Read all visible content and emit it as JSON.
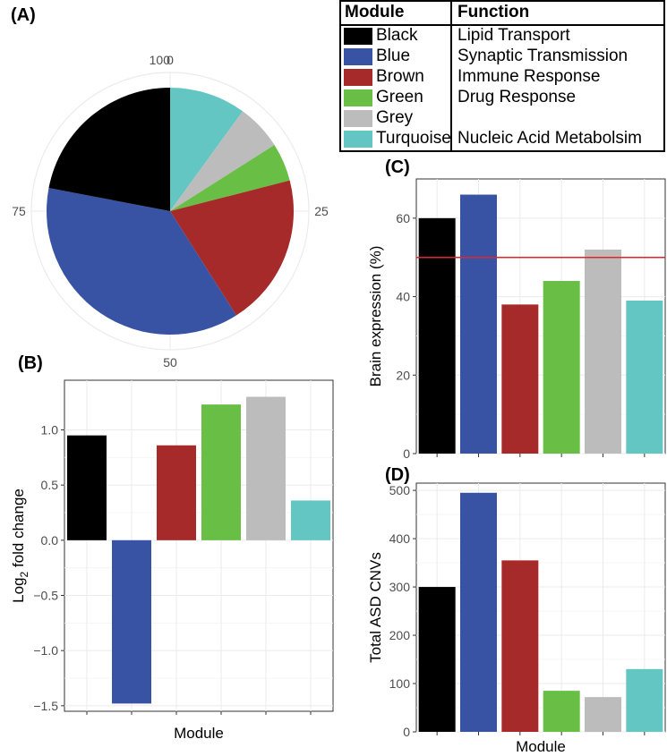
{
  "panels": {
    "a": "(A)",
    "b": "(B)",
    "c": "(C)",
    "d": "(D)"
  },
  "colors": {
    "Black": "#000000",
    "Blue": "#3953a4",
    "Brown": "#a72a2a",
    "Green": "#69be45",
    "Grey": "#bcbcbc",
    "Turquoise": "#63c6c3",
    "reference_line": "#e0262b"
  },
  "legend": {
    "header_module": "Module",
    "header_function": "Function",
    "rows": [
      {
        "module": "Black",
        "function": "Lipid Transport"
      },
      {
        "module": "Blue",
        "function": "Synaptic Transmission"
      },
      {
        "module": "Brown",
        "function": "Immune Response"
      },
      {
        "module": "Green",
        "function": "Drug Response"
      },
      {
        "module": "Grey",
        "function": ""
      },
      {
        "module": "Turquoise",
        "function": "Nucleic Acid Metabolsim"
      }
    ]
  },
  "chart_data": [
    {
      "id": "A",
      "type": "pie",
      "title": "",
      "radial_ticks": [
        "0",
        "25",
        "50",
        "75",
        "100"
      ],
      "radial_tick_values": [
        0,
        25,
        50,
        75,
        100
      ],
      "categories": [
        "Turquoise",
        "Grey",
        "Green",
        "Brown",
        "Blue",
        "Black"
      ],
      "values": [
        10,
        6,
        5,
        20,
        37,
        22
      ]
    },
    {
      "id": "B",
      "type": "bar",
      "categories": [
        "Black",
        "Blue",
        "Brown",
        "Green",
        "Grey",
        "Turquoise"
      ],
      "values": [
        0.95,
        -1.48,
        0.86,
        1.23,
        1.3,
        0.36
      ],
      "xlabel": "Module",
      "ylabel_main": "Log",
      "ylabel_sub": "2",
      "ylabel_rest": " fold change",
      "ylim": [
        -1.55,
        1.45
      ],
      "yticks": [
        -1.5,
        -1.0,
        -0.5,
        0.0,
        0.5,
        1.0
      ],
      "ytick_labels": [
        "−1.5",
        "−1.0",
        "−0.5",
        "0.0",
        "0.5",
        "1.0"
      ],
      "grid": true
    },
    {
      "id": "C",
      "type": "bar",
      "categories": [
        "Black",
        "Blue",
        "Brown",
        "Green",
        "Grey",
        "Turquoise"
      ],
      "values": [
        60,
        66,
        38,
        44,
        52,
        39
      ],
      "xlabel": "",
      "ylabel": "Brain expression (%)",
      "ylim": [
        0,
        70
      ],
      "yticks": [
        0,
        20,
        40,
        60
      ],
      "ytick_labels": [
        "0",
        "20",
        "40",
        "60"
      ],
      "reference_line": 50,
      "grid": true
    },
    {
      "id": "D",
      "type": "bar",
      "categories": [
        "Black",
        "Blue",
        "Brown",
        "Green",
        "Grey",
        "Turquoise"
      ],
      "values": [
        300,
        495,
        355,
        85,
        72,
        130
      ],
      "xlabel": "Module",
      "ylabel": "Total ASD CNVs",
      "ylim": [
        0,
        515
      ],
      "yticks": [
        0,
        100,
        200,
        300,
        400,
        500
      ],
      "ytick_labels": [
        "0",
        "100",
        "200",
        "300",
        "400",
        "500"
      ],
      "grid": true
    }
  ]
}
